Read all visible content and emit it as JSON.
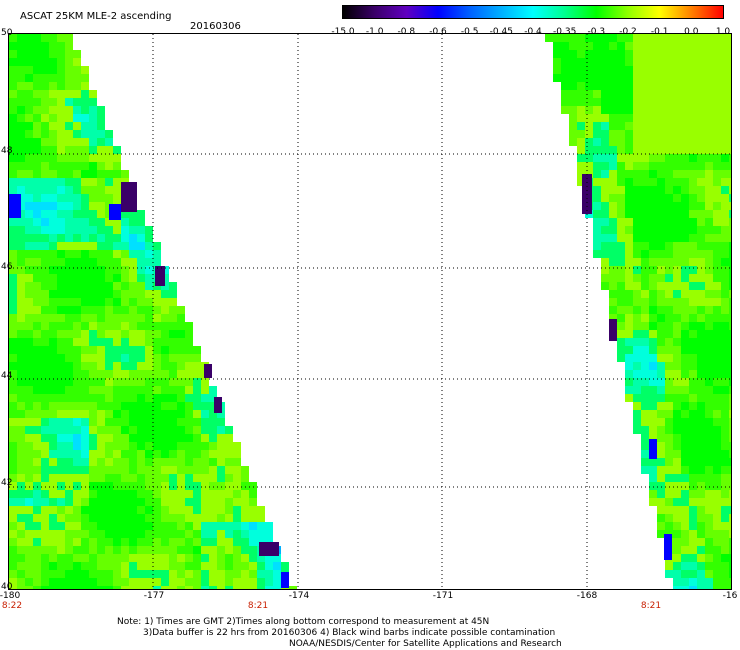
{
  "header": {
    "product": "ASCAT 25KM MLE-2 ascending",
    "date": "20160306"
  },
  "colorbar": {
    "labels": [
      "-15.0",
      "-1.0",
      "-0.8",
      "-0.6",
      "-0.5",
      "-0.45",
      "-0.4",
      "-0.35",
      "-0.3",
      "-0.2",
      "-0.1",
      "0.0",
      "1.0"
    ],
    "colors": [
      "#000000",
      "#3a0068",
      "#6000c0",
      "#0000ff",
      "#0060ff",
      "#00b0ff",
      "#00ffff",
      "#00ff90",
      "#00ff00",
      "#90ff00",
      "#ffff00",
      "#ff8000",
      "#ff0000"
    ]
  },
  "axes": {
    "lat_labels": [
      "50",
      "48",
      "46",
      "44",
      "42",
      "40"
    ],
    "lon_labels": [
      "-180",
      "-177",
      "-174",
      "-171",
      "-168",
      "-16"
    ],
    "time_labels": [
      "8:22",
      "8:21",
      "8:21"
    ]
  },
  "note": {
    "line1": "Note: 1) Times are GMT 2)Times along bottom correspond to measurement at 45N",
    "line2": "3)Data buffer is 22 hrs from 20160306 4) Black wind barbs indicate possible contamination",
    "line3": "NOAA/NESDIS/Center for Satellite Applications and Research"
  }
}
